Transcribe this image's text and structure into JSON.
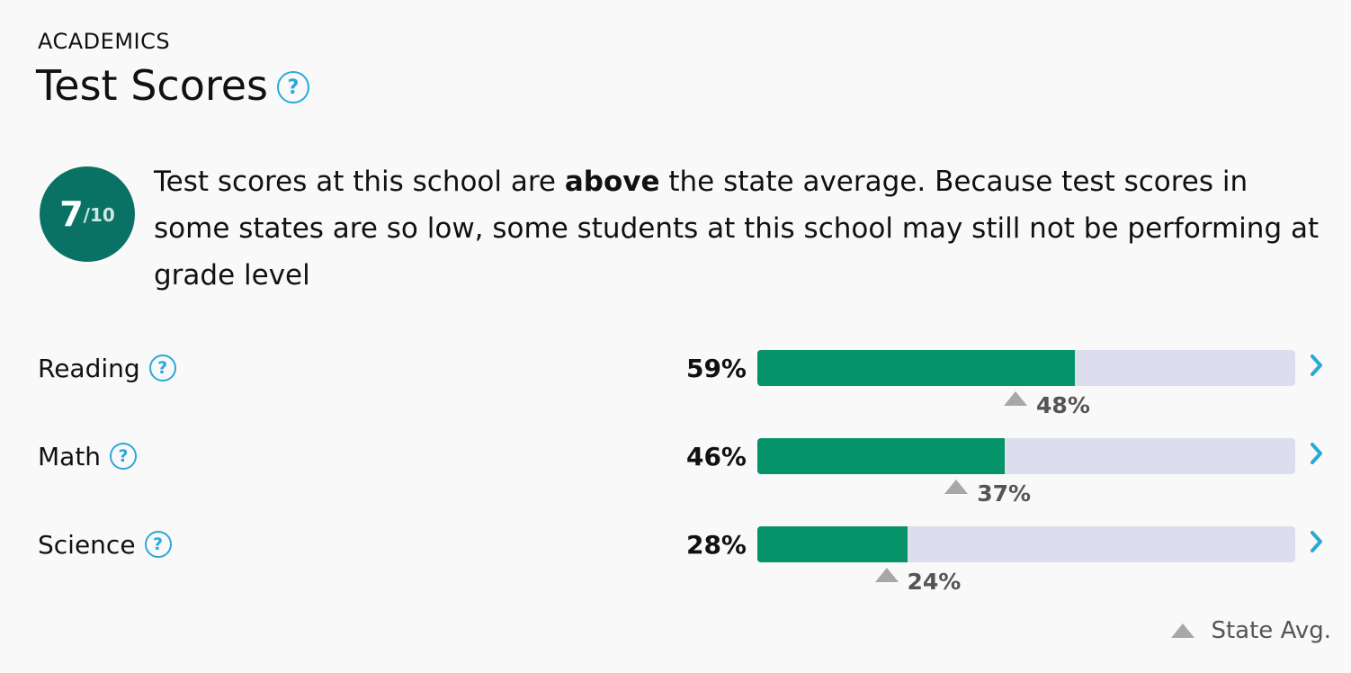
{
  "section": {
    "eyebrow": "ACADEMICS",
    "title": "Test Scores",
    "help_glyph": "?"
  },
  "rating": {
    "value": "7",
    "max": "/10"
  },
  "summary": {
    "prefix": "Test scores at this school are ",
    "emphasis": "above",
    "suffix": " the state average. Because test scores in some states are so low, some students at this school may still not be performing at grade level"
  },
  "scores": [
    {
      "subject": "Reading",
      "percent_label": "59%",
      "percent": 59,
      "state_avg_label": "48%",
      "state_avg": 48
    },
    {
      "subject": "Math",
      "percent_label": "46%",
      "percent": 46,
      "state_avg_label": "37%",
      "state_avg": 37
    },
    {
      "subject": "Science",
      "percent_label": "28%",
      "percent": 28,
      "state_avg_label": "24%",
      "state_avg": 24
    }
  ],
  "legend": {
    "label": "State Avg."
  },
  "colors": {
    "rating_bg": "#0a7265",
    "bar_fill": "#05936a",
    "bar_track": "#dcdeed",
    "help_accent": "#2aa8d8",
    "marker": "#a7a7a7"
  },
  "icons": {
    "help": "question-circle-icon",
    "expand": "chevron-right-icon",
    "state_avg": "triangle-up-icon"
  }
}
